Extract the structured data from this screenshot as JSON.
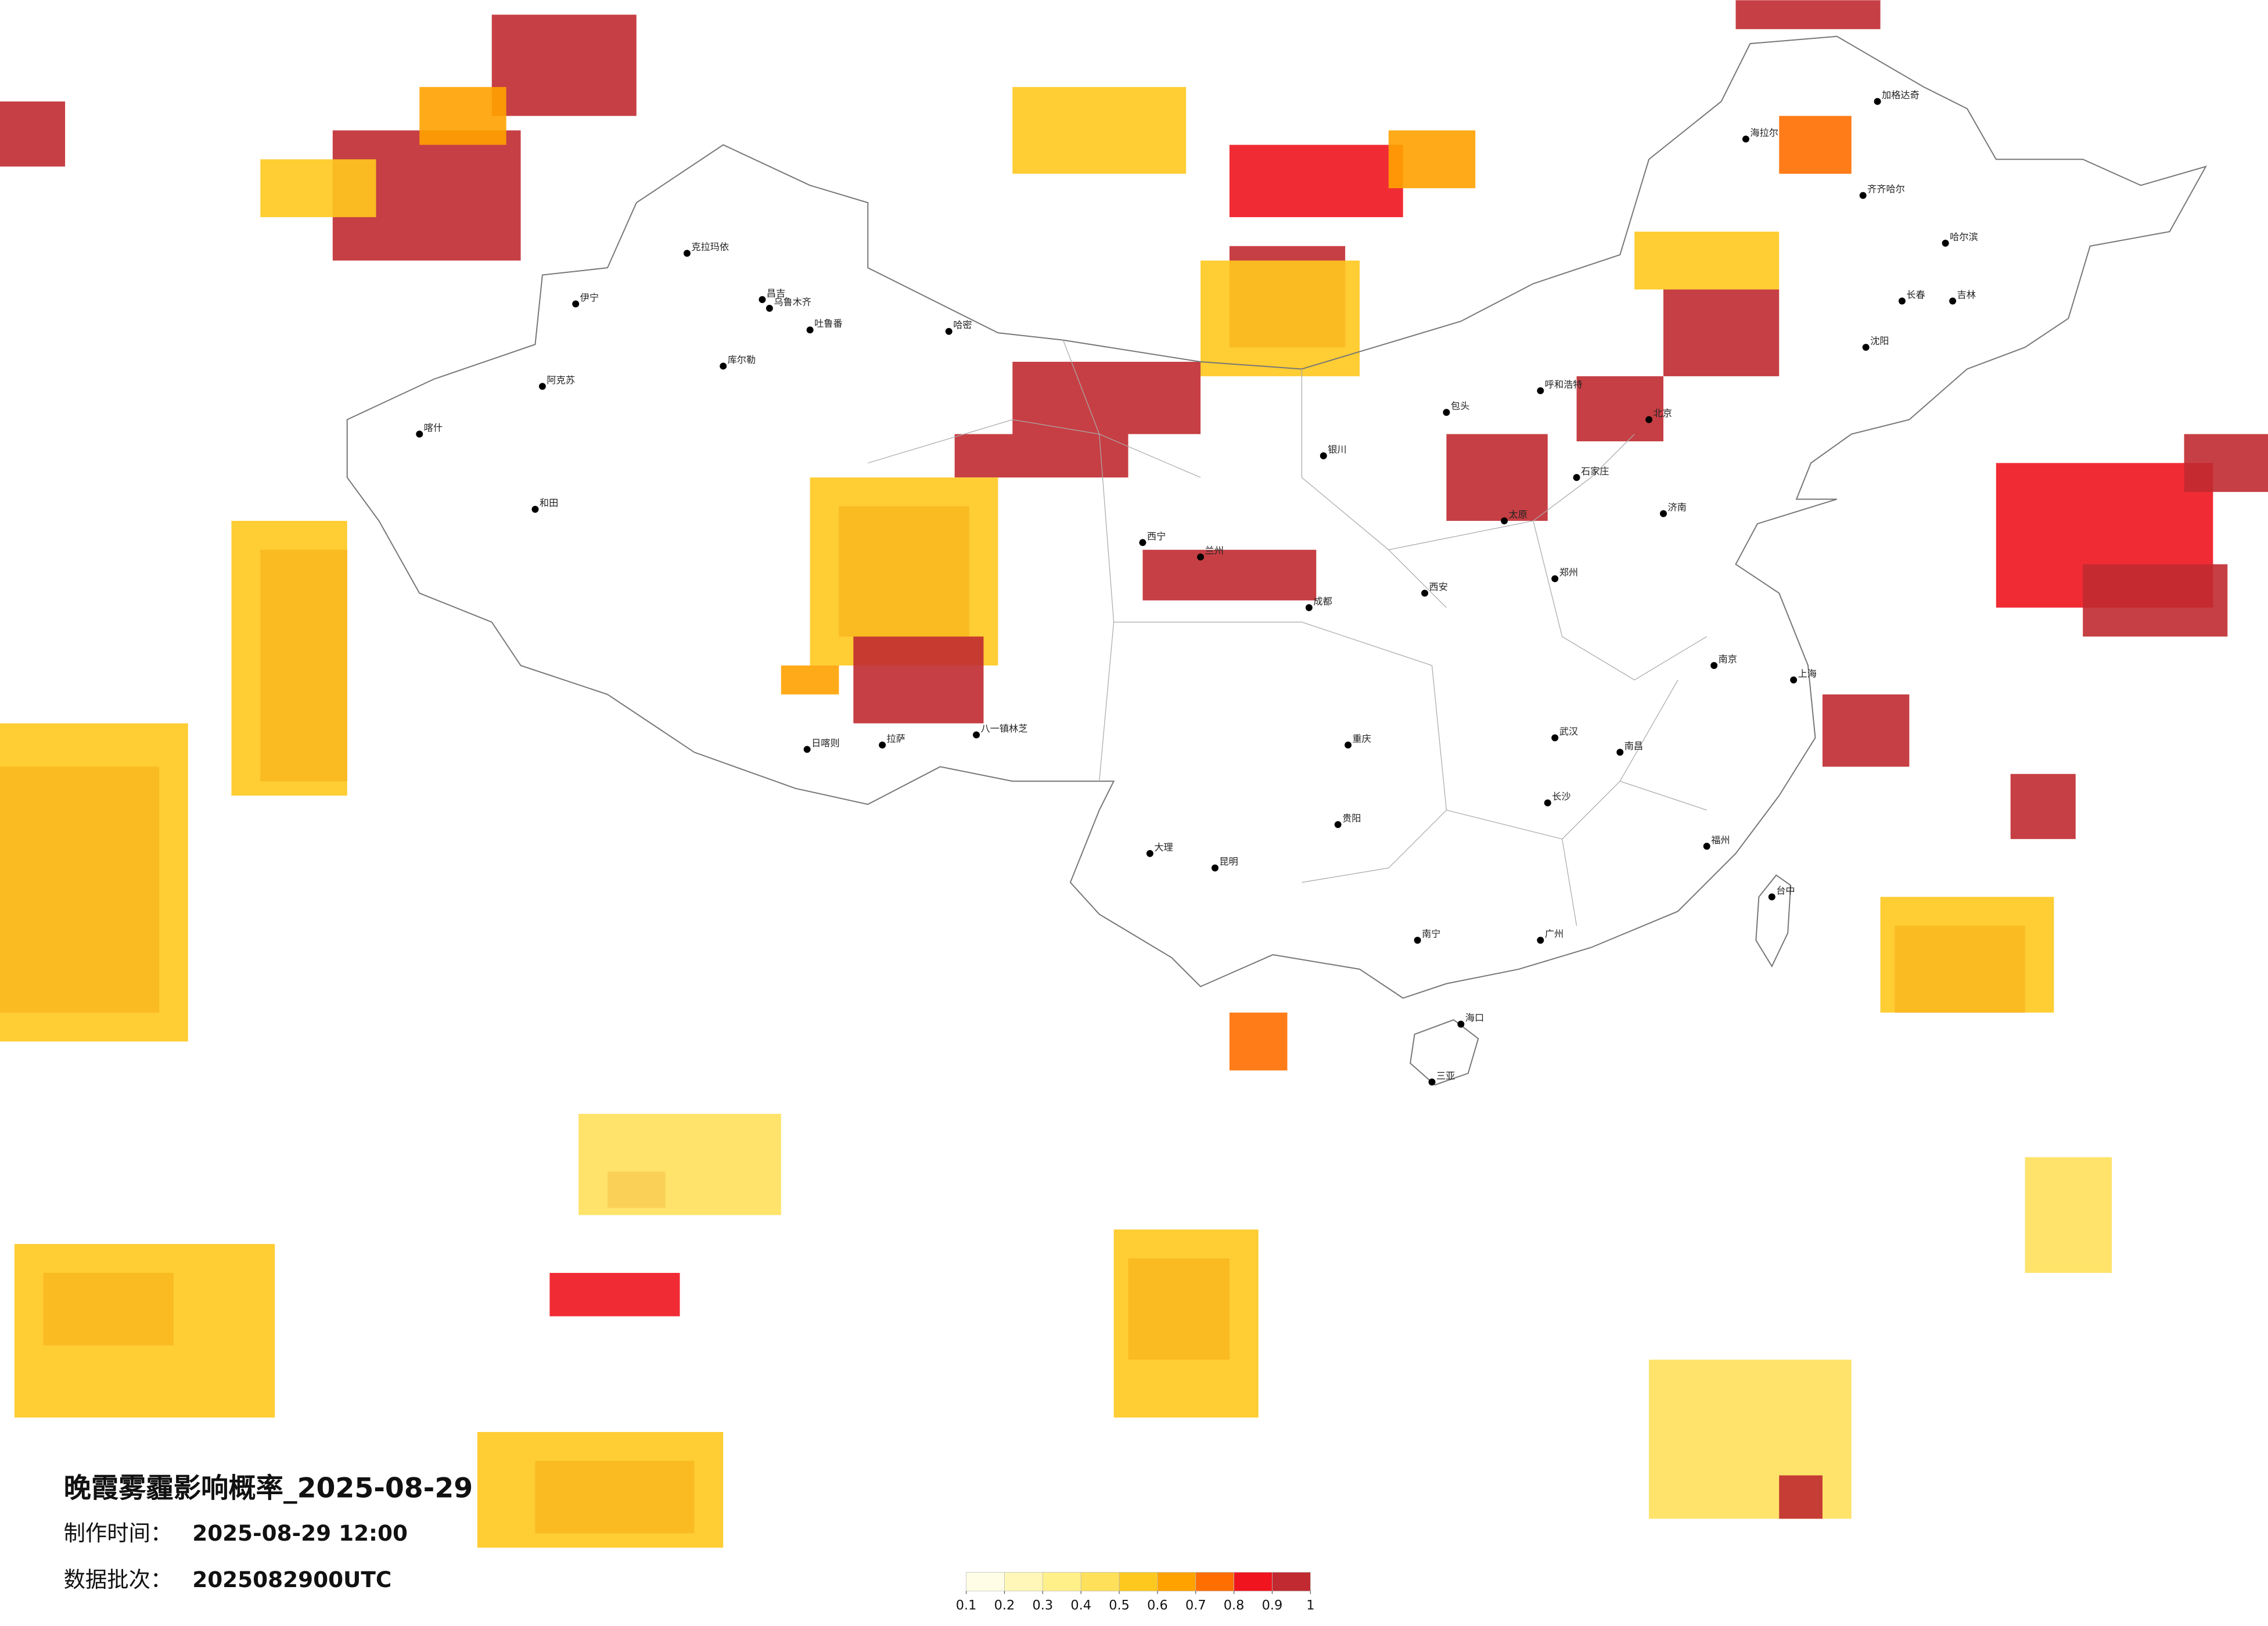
{
  "header": {
    "title": "晚霞雾霾影响概率_2025-08-29",
    "made_label": "制作时间：",
    "made_value": "2025-08-29 12:00",
    "batch_label": "数据批次：",
    "batch_value": "2025082900UTC"
  },
  "legend": {
    "ticks": [
      0.1,
      0.2,
      0.3,
      0.4,
      0.5,
      0.6,
      0.7,
      0.8,
      0.9,
      1
    ],
    "colors": [
      "#fffde6",
      "#fff7b8",
      "#fff08a",
      "#ffe05a",
      "#ffc81e",
      "#ffa200",
      "#ff6e00",
      "#f0141e",
      "#c02a30"
    ]
  },
  "cities": [
    "克拉玛依",
    "伊宁",
    "昌吉",
    "乌鲁木齐",
    "吐鲁番",
    "哈密",
    "库尔勒",
    "阿克苏",
    "喀什",
    "和田",
    "日喀则",
    "拉萨",
    "八一镇林芝",
    "加格达奇",
    "海拉尔",
    "齐齐哈尔",
    "哈尔滨",
    "长春",
    "吉林",
    "沈阳",
    "呼和浩特",
    "包头",
    "银川",
    "兰州",
    "西宁",
    "成都",
    "重庆",
    "贵阳",
    "昆明",
    "大理",
    "南宁",
    "广州",
    "海口",
    "三亚",
    "福州",
    "台中",
    "上海",
    "南京",
    "武汉",
    "长沙",
    "南昌",
    "郑州",
    "济南",
    "太原",
    "石家庄",
    "西安",
    "北京"
  ]
}
